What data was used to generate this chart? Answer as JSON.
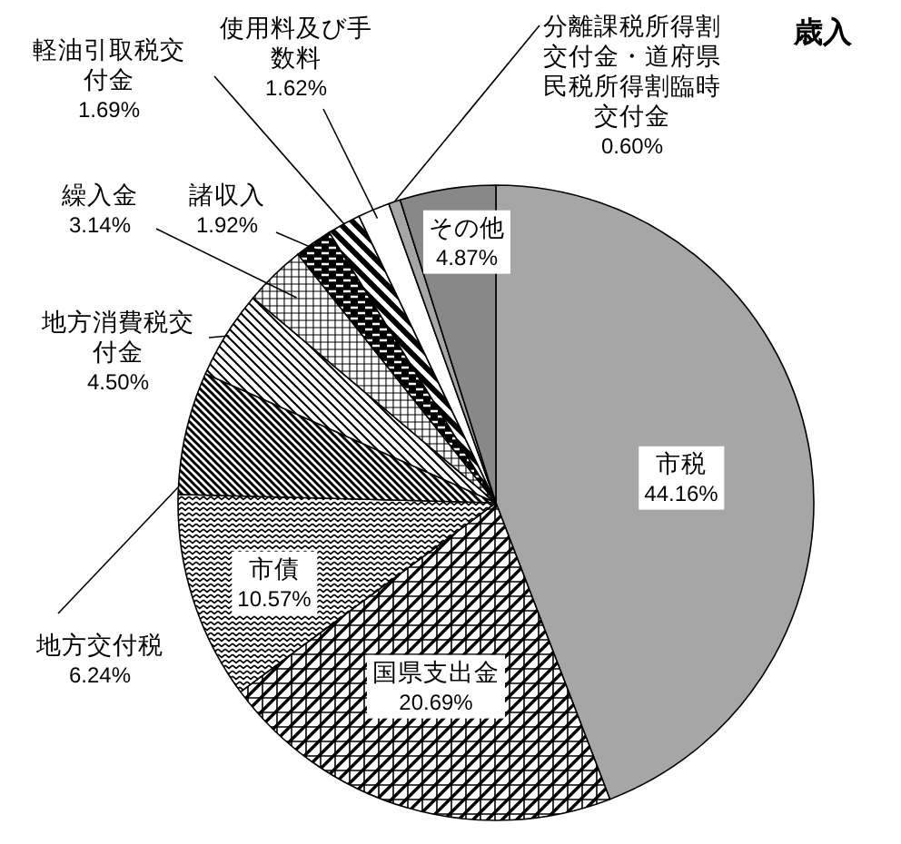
{
  "chart_data": {
    "type": "pie",
    "title": "歳入",
    "categories": [
      "市税",
      "国県支出金",
      "市債",
      "地方交付税",
      "地方消費税交付金",
      "繰入金",
      "諸収入",
      "軽油引取税交付金",
      "使用料及び手数料",
      "分離課税所得割交付金・道府県民税所得割臨時交付金",
      "その他"
    ],
    "values": [
      44.16,
      20.69,
      10.57,
      6.24,
      4.5,
      3.14,
      1.92,
      1.69,
      1.62,
      0.6,
      4.87
    ],
    "value_labels": [
      "44.16%",
      "20.69%",
      "10.57%",
      "6.24%",
      "4.50%",
      "3.14%",
      "1.92%",
      "1.69%",
      "1.62%",
      "0.60%",
      "4.87%"
    ],
    "colors": [
      "#a6a6a6",
      "#000000",
      "#000000",
      "#000000",
      "#000000",
      "#000000",
      "#000000",
      "#000000",
      "#ffffff",
      "#a6a6a6",
      "#888888"
    ]
  }
}
